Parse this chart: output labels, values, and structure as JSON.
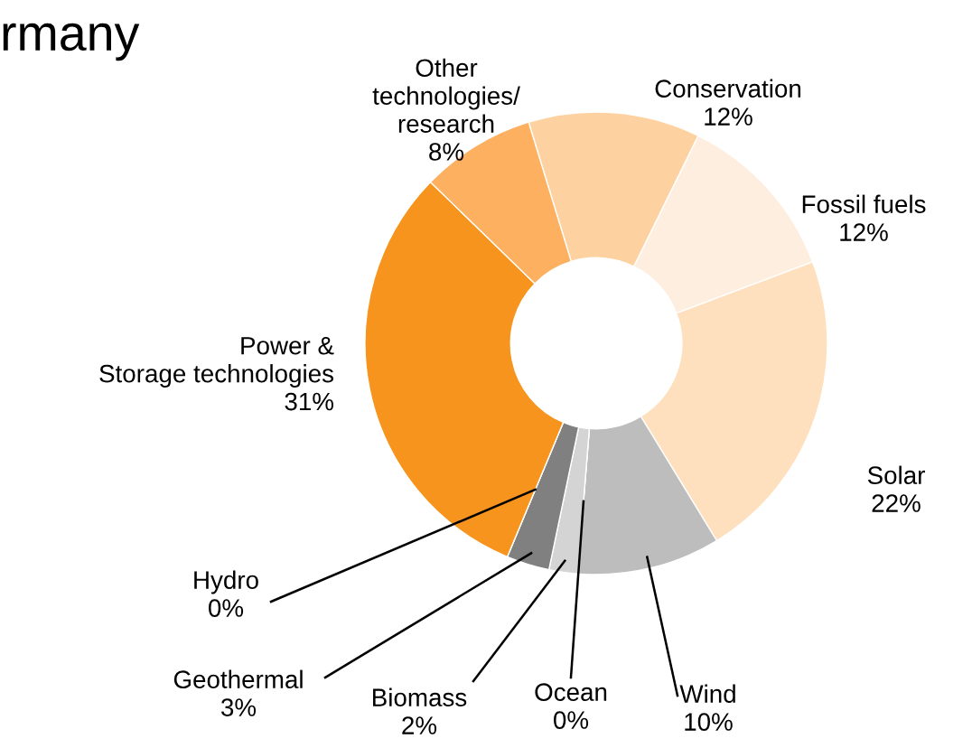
{
  "chart_data": {
    "type": "donut",
    "title": "rmany",
    "categories": [
      "Conservation",
      "Fossil fuels",
      "Solar",
      "Wind",
      "Ocean",
      "Biomass",
      "Geothermal",
      "Hydro",
      "Power &\nStorage technologies",
      "Other\ntechnologies/\nresearch"
    ],
    "values": [
      12,
      12,
      22,
      10,
      0,
      2,
      3,
      0,
      31,
      8
    ],
    "colors": [
      "#fed2a0",
      "#feeee0",
      "#fee0bf",
      "#bdbdbd",
      "#e6e6e6",
      "#d4d4d4",
      "#808080",
      "#999999",
      "#f7941d",
      "#fdb060"
    ],
    "value_labels": [
      "12%",
      "12%",
      "22%",
      "10%",
      "0%",
      "2%",
      "3%",
      "0%",
      "31%",
      "8%"
    ],
    "legend": false
  }
}
